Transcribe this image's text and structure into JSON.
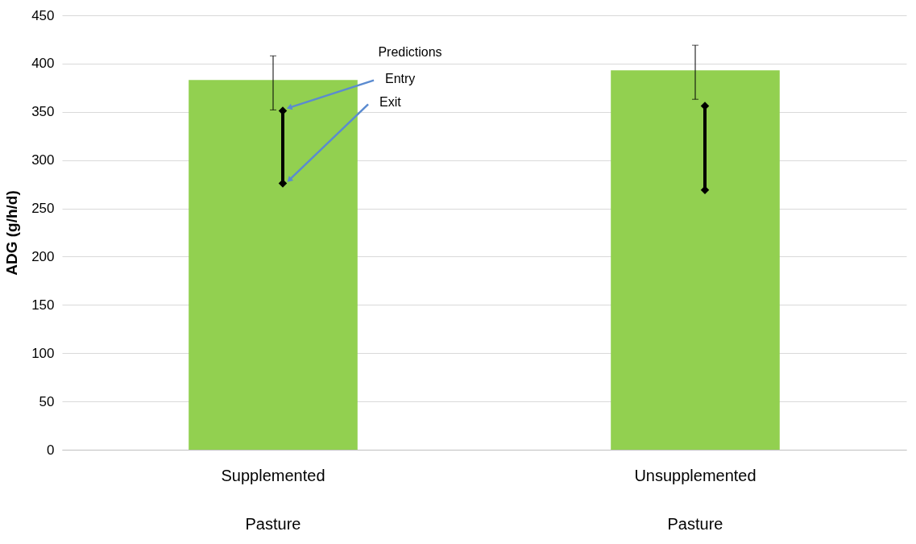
{
  "chart_data": {
    "type": "bar",
    "ylabel": "ADG (g/h/d)",
    "categories": [
      "Supplemented\nPasture",
      "Unsupplemented\nPasture"
    ],
    "ylim": [
      0,
      450
    ],
    "yticks": [
      0,
      50,
      100,
      150,
      200,
      250,
      300,
      350,
      400,
      450
    ],
    "grid": "y",
    "series": [
      {
        "color": "#92d050",
        "values": [
          383,
          393
        ],
        "errors": [
          [
            352,
            408
          ],
          [
            363,
            419
          ]
        ]
      },
      {
        "type": "scatter",
        "name": "Entry",
        "color": "#000000",
        "marker": "diamond",
        "values": [
          351,
          356
        ]
      },
      {
        "type": "scatter",
        "name": "Exit",
        "color": "#000000",
        "marker": "diamond",
        "values": [
          276,
          269
        ]
      }
    ],
    "annotations": [
      "Predictions"
    ]
  }
}
